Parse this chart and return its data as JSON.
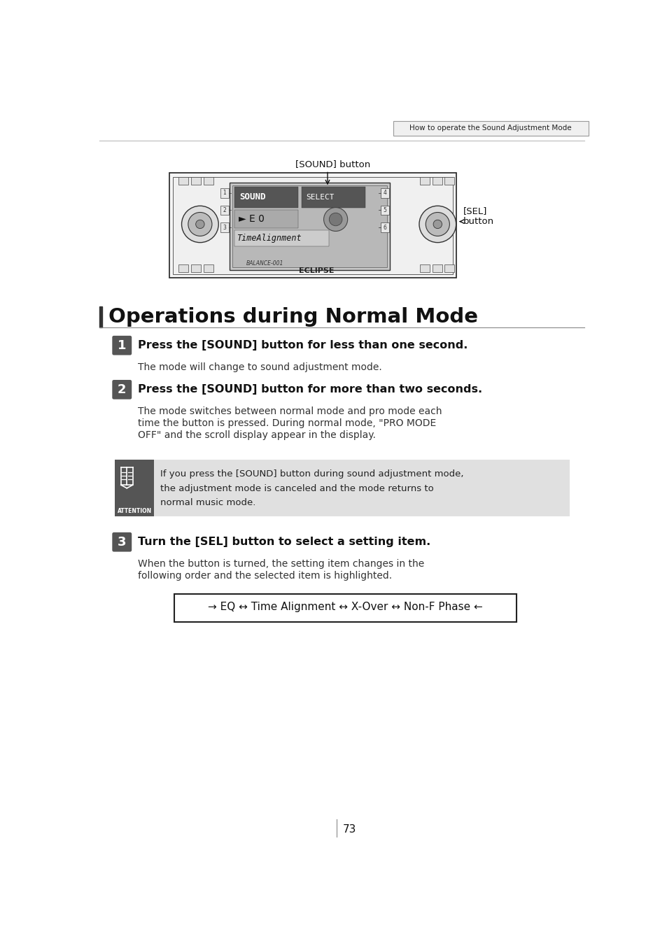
{
  "bg_color": "#ffffff",
  "header_text": "How to operate the Sound Adjustment Mode",
  "sound_button_label": "[SOUND] button",
  "sel_button_label": "[SEL]\nbutton",
  "section_title": "Operations during Normal Mode",
  "step1_num": "1",
  "step1_bold": "Press the [SOUND] button for less than one second.",
  "step1_body": "The mode will change to sound adjustment mode.",
  "step2_num": "2",
  "step2_bold": "Press the [SOUND] button for more than two seconds.",
  "step2_body_lines": [
    "The mode switches between normal mode and pro mode each",
    "time the button is pressed. During normal mode, \"PRO MODE",
    "OFF\" and the scroll display appear in the display."
  ],
  "attention_label": "ATTENTION",
  "att_lines": [
    "If you press the [SOUND] button during sound adjustment mode,",
    "the adjustment mode is canceled and the mode returns to",
    "normal music mode."
  ],
  "step3_num": "3",
  "step3_bold": "Turn the [SEL] button to select a setting item.",
  "step3_body_lines": [
    "When the button is turned, the setting item changes in the",
    "following order and the selected item is highlighted."
  ],
  "flow_text": "→ EQ ↔ Time Alignment ↔ X-Over ↔ Non-F Phase ←",
  "page_number": "73",
  "title_bar_color": "#333333",
  "step_badge_color": "#555555",
  "attention_bg_color": "#e0e0e0",
  "attention_icon_color": "#555555"
}
